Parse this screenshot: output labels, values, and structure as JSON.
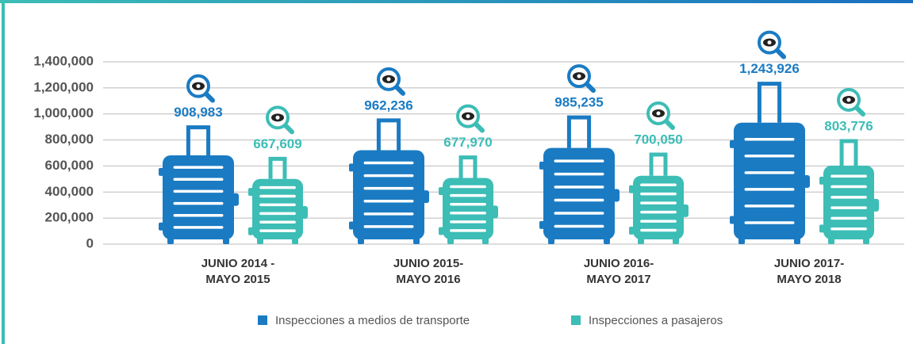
{
  "chart_data": {
    "type": "suitcase-bar",
    "categories": [
      "JUNIO 2014 -\nMAYO 2015",
      "JUNIO 2015-\nMAYO 2016",
      "JUNIO 2016-\nMAYO 2017",
      "JUNIO 2017-\nMAYO 2018"
    ],
    "series": [
      {
        "name": "Inspecciones a medios de transporte",
        "color": "#1a7bc3",
        "values": [
          908983,
          962236,
          985235,
          1243926
        ],
        "value_labels": [
          "908,983",
          "962,236",
          "985,235",
          "1,243,926"
        ]
      },
      {
        "name": "Inspecciones a pasajeros",
        "color": "#3cbdb6",
        "values": [
          667609,
          677970,
          700050,
          803776
        ],
        "value_labels": [
          "667,609",
          "677,970",
          "700,050",
          "803,776"
        ]
      }
    ],
    "ylim": [
      0,
      1400000
    ],
    "yticks": [
      0,
      {
        "value": 200000,
        "label": "200,000"
      },
      {
        "value": 400000,
        "label": "400,000"
      },
      {
        "value": 600000,
        "label": "600,000"
      },
      {
        "value": 800000,
        "label": "800,000"
      },
      {
        "value": 1000000,
        "label": "1,000,000"
      },
      {
        "value": 1200000,
        "label": "1,200,000"
      },
      {
        "value": 1400000,
        "label": "1,400,000"
      }
    ],
    "grid": true
  }
}
